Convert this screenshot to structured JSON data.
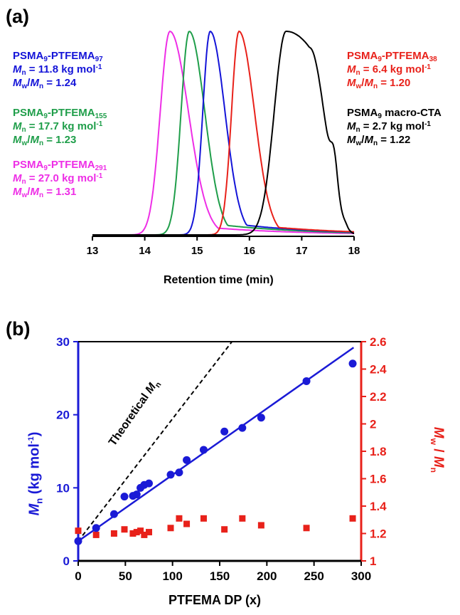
{
  "panels": {
    "a": "(a)",
    "b": "(b)"
  },
  "chart_data": [
    {
      "type": "line",
      "panel": "(a)",
      "xlabel": "Retention time (min)",
      "xlim": [
        13,
        18
      ],
      "xticks": [
        "13",
        "14",
        "15",
        "16",
        "17",
        "18"
      ],
      "series": [
        {
          "name": "PSMA9-PTFEMA291",
          "color": "#ee2ee6",
          "peak": 14.48,
          "width_left": 0.26,
          "width_right": 0.5,
          "tail": 0.04,
          "label": {
            "title": "PSMA",
            "title_sub": "9",
            "title_rest": "-PTFEMA",
            "title_rest_sub": "291",
            "mn_val": " = 27.0 kg mol",
            "mn_sup": "-1",
            "disp_val": " = 1.31"
          }
        },
        {
          "name": "PSMA9-PTFEMA155",
          "color": "#1f9e4a",
          "peak": 14.85,
          "width_left": 0.22,
          "width_right": 0.42,
          "tail": 0.05,
          "label": {
            "title": "PSMA",
            "title_sub": "9",
            "title_rest": "-PTFEMA",
            "title_rest_sub": "155",
            "mn_val": " = 17.7 kg mol",
            "mn_sup": "-1",
            "disp_val": " = 1.23"
          }
        },
        {
          "name": "PSMA9-PTFEMA97",
          "color": "#1414d8",
          "peak": 15.25,
          "width_left": 0.2,
          "width_right": 0.4,
          "tail": 0.05,
          "label": {
            "title": "PSMA",
            "title_sub": "9",
            "title_rest": "-PTFEMA",
            "title_rest_sub": "97",
            "mn_val": " = 11.8 kg mol",
            "mn_sup": "-1",
            "disp_val": " = 1.24"
          }
        },
        {
          "name": "PSMA9-PTFEMA38",
          "color": "#e8211a",
          "peak": 15.8,
          "width_left": 0.2,
          "width_right": 0.42,
          "tail": 0.04,
          "label": {
            "title": "PSMA",
            "title_sub": "9",
            "title_rest": "-PTFEMA",
            "title_rest_sub": "38",
            "mn_val": " = 6.4 kg mol",
            "mn_sup": "-1",
            "disp_val": " = 1.20"
          }
        },
        {
          "name": "PSMA9 macro-CTA",
          "color": "#000000",
          "peak": 16.7,
          "width_left": 0.3,
          "width_right": 0.45,
          "tail": 0.0,
          "label": {
            "title": "PSMA",
            "title_sub": "9",
            "title_rest": " macro-CTA",
            "title_rest_sub": "",
            "mn_val": " = 2.7 kg mol",
            "mn_sup": "-1",
            "disp_val": " = 1.22"
          }
        }
      ]
    },
    {
      "type": "scatter",
      "panel": "(b)",
      "xlabel": "PTFEMA DP (x)",
      "ylabel_left": "Mn (kg mol-1)",
      "ylabel_right": "Mw / Mn",
      "xlim": [
        0,
        300
      ],
      "ylim_left": [
        0,
        30
      ],
      "ylim_right": [
        1,
        2.6
      ],
      "xticks": [
        "0",
        "50",
        "100",
        "150",
        "200",
        "250",
        "300"
      ],
      "yticks_left": [
        "0",
        "10",
        "20",
        "30"
      ],
      "yticks_right": [
        "1",
        "1.2",
        "1.4",
        "1.6",
        "1.8",
        "2",
        "2.2",
        "2.4",
        "2.6"
      ],
      "annotation": "Theoretical Mn",
      "theoretical_line": {
        "x": [
          0,
          163
        ],
        "y": [
          2.7,
          30
        ]
      },
      "fit_line": {
        "x": [
          0,
          292
        ],
        "y": [
          2.7,
          29.2
        ]
      },
      "mn_points": {
        "color": "#1a1ad6",
        "x": [
          0,
          19,
          38,
          49,
          58,
          62,
          66,
          70,
          75,
          98,
          107,
          115,
          133,
          155,
          174,
          194,
          242,
          291
        ],
        "y": [
          2.7,
          4.5,
          6.4,
          8.8,
          8.9,
          9.1,
          10.0,
          10.4,
          10.6,
          11.8,
          12.1,
          13.8,
          15.2,
          17.7,
          18.2,
          19.6,
          24.6,
          27.0
        ]
      },
      "dispersity_points": {
        "color": "#e8211a",
        "x": [
          0,
          19,
          38,
          49,
          58,
          62,
          66,
          70,
          75,
          98,
          107,
          115,
          133,
          155,
          174,
          194,
          242,
          291
        ],
        "y": [
          1.22,
          1.19,
          1.2,
          1.23,
          1.2,
          1.21,
          1.22,
          1.19,
          1.21,
          1.24,
          1.31,
          1.27,
          1.31,
          1.23,
          1.31,
          1.26,
          1.24,
          1.31
        ]
      }
    }
  ]
}
